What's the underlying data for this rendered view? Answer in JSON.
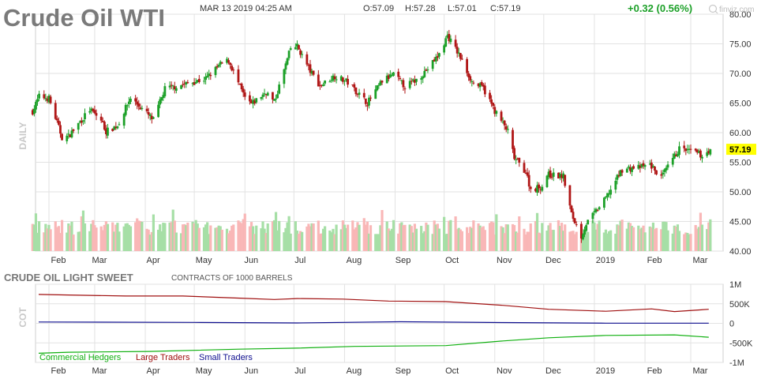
{
  "header": {
    "title": "Crude Oil WTI",
    "datetime": "MAR 13 2019 04:25 AM",
    "open": "O:57.09",
    "high": "H:57.28",
    "low": "L:57.01",
    "close": "C:57.19",
    "change": "+0.32 (0.56%)",
    "watermark": "finviz.com",
    "side_label": "DAILY"
  },
  "colors": {
    "up": "#1ca028",
    "down": "#b01616",
    "vol_up": "#a6dfa6",
    "vol_down": "#f9b7b7",
    "grid": "#e2e2e2",
    "price_badge": "#ffff00",
    "large_traders": "#a01010",
    "small_traders": "#101090",
    "commercial": "#10b010"
  },
  "chart_data": [
    {
      "type": "candlestick",
      "title": "Crude Oil WTI",
      "ylim": [
        40,
        80
      ],
      "y_ticks": [
        "80.00",
        "75.00",
        "70.00",
        "65.00",
        "60.00",
        "55.00",
        "50.00",
        "45.00",
        "40.00"
      ],
      "x_ticks": [
        "Feb",
        "Mar",
        "Apr",
        "May",
        "Jun",
        "Jul",
        "Aug",
        "Sep",
        "Oct",
        "Nov",
        "Dec",
        "2019",
        "Feb",
        "Mar"
      ],
      "last_price": "57.19",
      "close_path": [
        {
          "date": "2018-01-22",
          "close": 63.6
        },
        {
          "date": "2018-01-26",
          "close": 66.1
        },
        {
          "date": "2018-02-01",
          "close": 65.8
        },
        {
          "date": "2018-02-09",
          "close": 59.2
        },
        {
          "date": "2018-02-13",
          "close": 59.4
        },
        {
          "date": "2018-02-26",
          "close": 63.9
        },
        {
          "date": "2018-03-05",
          "close": 62.1
        },
        {
          "date": "2018-03-08",
          "close": 60.2
        },
        {
          "date": "2018-03-15",
          "close": 61.2
        },
        {
          "date": "2018-03-23",
          "close": 65.9
        },
        {
          "date": "2018-04-06",
          "close": 62.1
        },
        {
          "date": "2018-04-13",
          "close": 67.4
        },
        {
          "date": "2018-04-24",
          "close": 68.1
        },
        {
          "date": "2018-05-08",
          "close": 69.1
        },
        {
          "date": "2018-05-17",
          "close": 71.5
        },
        {
          "date": "2018-05-22",
          "close": 72.2
        },
        {
          "date": "2018-06-01",
          "close": 65.8
        },
        {
          "date": "2018-06-05",
          "close": 64.8
        },
        {
          "date": "2018-06-14",
          "close": 66.9
        },
        {
          "date": "2018-06-19",
          "close": 65.1
        },
        {
          "date": "2018-06-29",
          "close": 74.2
        },
        {
          "date": "2018-07-03",
          "close": 74.6
        },
        {
          "date": "2018-07-11",
          "close": 70.4
        },
        {
          "date": "2018-07-17",
          "close": 67.9
        },
        {
          "date": "2018-07-26",
          "close": 69.6
        },
        {
          "date": "2018-08-03",
          "close": 68.5
        },
        {
          "date": "2018-08-15",
          "close": 65.0
        },
        {
          "date": "2018-08-24",
          "close": 68.7
        },
        {
          "date": "2018-08-31",
          "close": 69.8
        },
        {
          "date": "2018-09-07",
          "close": 67.8
        },
        {
          "date": "2018-09-14",
          "close": 68.9
        },
        {
          "date": "2018-09-21",
          "close": 70.8
        },
        {
          "date": "2018-09-28",
          "close": 73.2
        },
        {
          "date": "2018-10-03",
          "close": 76.4
        },
        {
          "date": "2018-10-10",
          "close": 73.2
        },
        {
          "date": "2018-10-18",
          "close": 68.6
        },
        {
          "date": "2018-10-25",
          "close": 67.5
        },
        {
          "date": "2018-11-01",
          "close": 63.7
        },
        {
          "date": "2018-11-09",
          "close": 60.2
        },
        {
          "date": "2018-11-13",
          "close": 55.7
        },
        {
          "date": "2018-11-20",
          "close": 53.4
        },
        {
          "date": "2018-11-23",
          "close": 50.4
        },
        {
          "date": "2018-11-30",
          "close": 50.9
        },
        {
          "date": "2018-12-03",
          "close": 52.9
        },
        {
          "date": "2018-12-13",
          "close": 52.6
        },
        {
          "date": "2018-12-18",
          "close": 46.2
        },
        {
          "date": "2018-12-24",
          "close": 42.5
        },
        {
          "date": "2018-12-27",
          "close": 44.6
        },
        {
          "date": "2019-01-07",
          "close": 48.5
        },
        {
          "date": "2019-01-18",
          "close": 53.8
        },
        {
          "date": "2019-01-30",
          "close": 54.2
        },
        {
          "date": "2019-02-04",
          "close": 54.6
        },
        {
          "date": "2019-02-11",
          "close": 52.4
        },
        {
          "date": "2019-02-22",
          "close": 57.3
        },
        {
          "date": "2019-03-04",
          "close": 56.6
        },
        {
          "date": "2019-03-08",
          "close": 56.1
        },
        {
          "date": "2019-03-13",
          "close": 57.19
        }
      ],
      "volume_bars": "relative daily volume, green on up days, red on down days"
    },
    {
      "type": "line",
      "title": "CRUDE OIL LIGHT SWEET",
      "subtitle": "CONTRACTS OF 1000 BARRELS",
      "ylabel": "COT",
      "ylim": [
        -1000000,
        1000000
      ],
      "y_ticks": [
        "1M",
        "500K",
        "0",
        "-500K",
        "-1M"
      ],
      "x_ticks": [
        "Feb",
        "Mar",
        "Apr",
        "May",
        "Jun",
        "Jul",
        "Aug",
        "Sep",
        "Oct",
        "Nov",
        "Dec",
        "2019",
        "Feb",
        "Mar"
      ],
      "series": [
        {
          "name": "Large Traders",
          "points": [
            {
              "date": "2018-01-16",
              "value": 740000
            },
            {
              "date": "2018-02-13",
              "value": 725000
            },
            {
              "date": "2018-03-20",
              "value": 700000
            },
            {
              "date": "2018-04-24",
              "value": 700000
            },
            {
              "date": "2018-05-29",
              "value": 645000
            },
            {
              "date": "2018-06-19",
              "value": 610000
            },
            {
              "date": "2018-07-03",
              "value": 635000
            },
            {
              "date": "2018-07-31",
              "value": 620000
            },
            {
              "date": "2018-08-28",
              "value": 570000
            },
            {
              "date": "2018-10-02",
              "value": 555000
            },
            {
              "date": "2018-11-06",
              "value": 460000
            },
            {
              "date": "2018-12-04",
              "value": 360000
            },
            {
              "date": "2019-01-08",
              "value": 310000
            },
            {
              "date": "2019-02-05",
              "value": 370000
            },
            {
              "date": "2019-02-19",
              "value": 300000
            },
            {
              "date": "2019-03-12",
              "value": 360000
            }
          ]
        },
        {
          "name": "Small Traders",
          "points": [
            {
              "date": "2018-01-16",
              "value": 35000
            },
            {
              "date": "2018-05-01",
              "value": 25000
            },
            {
              "date": "2018-07-03",
              "value": 10000
            },
            {
              "date": "2018-09-04",
              "value": 40000
            },
            {
              "date": "2018-11-06",
              "value": 20000
            },
            {
              "date": "2019-01-08",
              "value": 5000
            },
            {
              "date": "2019-03-12",
              "value": 5000
            }
          ]
        },
        {
          "name": "Commercial Hedgers",
          "points": [
            {
              "date": "2018-01-16",
              "value": -765000
            },
            {
              "date": "2018-02-13",
              "value": -740000
            },
            {
              "date": "2018-04-03",
              "value": -720000
            },
            {
              "date": "2018-05-29",
              "value": -660000
            },
            {
              "date": "2018-07-03",
              "value": -635000
            },
            {
              "date": "2018-08-07",
              "value": -590000
            },
            {
              "date": "2018-10-02",
              "value": -570000
            },
            {
              "date": "2018-11-06",
              "value": -450000
            },
            {
              "date": "2018-12-04",
              "value": -370000
            },
            {
              "date": "2019-01-08",
              "value": -310000
            },
            {
              "date": "2019-02-19",
              "value": -295000
            },
            {
              "date": "2019-03-12",
              "value": -355000
            }
          ]
        }
      ]
    }
  ]
}
